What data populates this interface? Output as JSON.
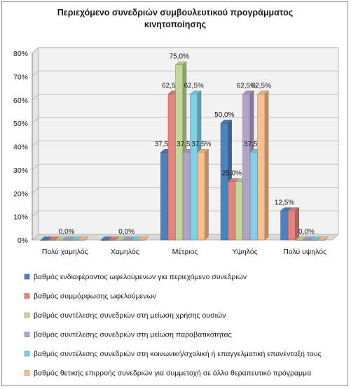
{
  "chart_data": {
    "type": "bar",
    "title_lines": [
      "Περιεχόμενο συνεδριών συμβουλευτικού προγράμματος",
      "κινητοποίησης"
    ],
    "categories": [
      "Πολύ χαμηλός",
      "Χαμηλός",
      "Μέτριος",
      "Υψηλός",
      "Πολύ υψηλός"
    ],
    "y_ticks": [
      "0%",
      "10%",
      "20%",
      "30%",
      "40%",
      "50%",
      "60%",
      "70%",
      "80%"
    ],
    "ylim": [
      0,
      0.8
    ],
    "grid": true,
    "legend_position": "bottom",
    "series": [
      {
        "name": "βαθμός ενδιαφέροντος ωφελούμενων για περιεχόμενο συνεδριών",
        "color": "#4f81bd",
        "values": [
          0,
          0,
          0.375,
          0.5,
          0.125
        ],
        "labels": [
          "",
          "",
          "37,5%",
          "50,0%",
          "12,5%"
        ]
      },
      {
        "name": "βαθμός συμμόρφωσης ωφελούμενων",
        "color": "#e28580",
        "values": [
          0,
          0,
          0.625,
          0.25,
          0.125
        ],
        "labels": [
          "",
          "",
          "62,5%",
          "25,0%",
          ""
        ]
      },
      {
        "name": "βαθμός συντέλεσης συνεδριών στη μείωση χρήσης ουσιών",
        "color": "#c3d69b",
        "values": [
          0,
          0,
          0.75,
          0.25,
          0
        ],
        "labels": [
          "",
          "",
          "75,0%",
          "",
          ""
        ]
      },
      {
        "name": "βαθμός συντέλεσης συνεδριών στη μείωση παραβατικότητας",
        "color": "#b3a2c7",
        "values": [
          0,
          0,
          0.375,
          0.625,
          0
        ],
        "labels": [
          "0,0%",
          "0,0%",
          "37,5%",
          "62,5%",
          "0,0%"
        ]
      },
      {
        "name": "βαθμός συντέλεσης συνεδριών στη κοινωνική/σχολική ή επαγγελματική επανένταξή τους",
        "color": "#7fd1e6",
        "values": [
          0,
          0,
          0.625,
          0.375,
          0
        ],
        "labels": [
          "",
          "",
          "62,5%",
          "37,5%",
          ""
        ]
      },
      {
        "name": "βαθμός θετικής επιρροής συνεδριών για συμμετοχή σε άλλο θεραπευτικό πρόγραμμα",
        "color": "#fabf8f",
        "values": [
          0,
          0,
          0.375,
          0.625,
          0
        ],
        "labels": [
          "",
          "",
          "37,5%",
          "62,5%",
          ""
        ]
      }
    ]
  }
}
